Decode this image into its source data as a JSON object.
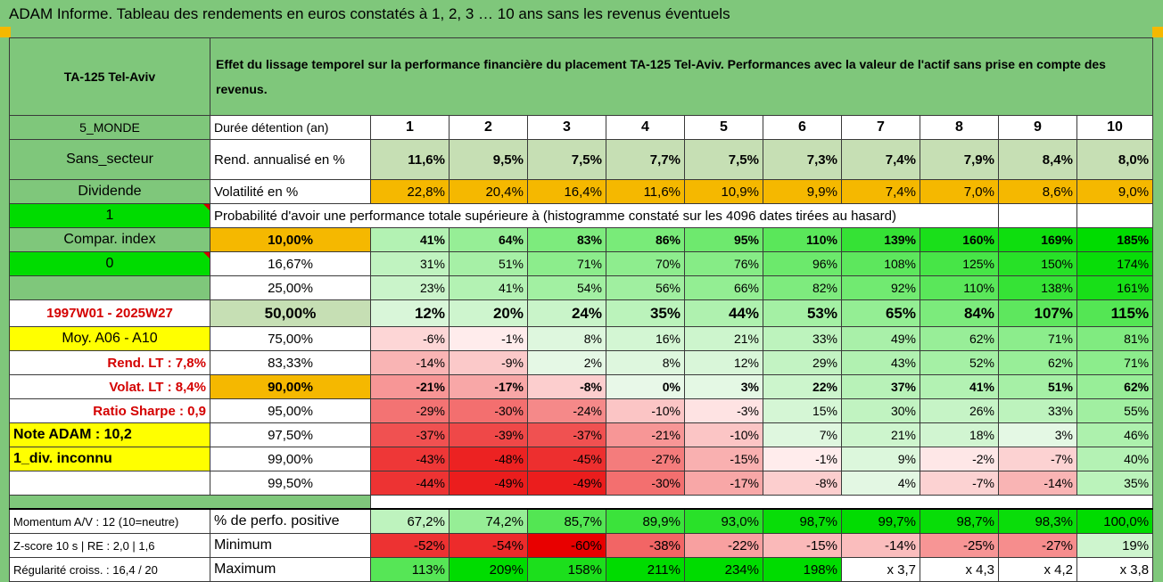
{
  "title": "ADAM Informe. Tableau des rendements en euros constatés à 1, 2, 3 … 10 ans sans les revenus éventuels",
  "header": {
    "asset": "TA-125 Tel-Aviv",
    "description": "Effet du lissage temporel sur la performance financière du placement TA-125 Tel-Aviv. Performances avec la valeur de l'actif sans prise en compte des revenus."
  },
  "left": {
    "zone": "5_MONDE",
    "sector": "Sans_secteur",
    "dividend": "Dividende",
    "flag_1": "1",
    "compar_index": "Compar. index",
    "flag_0": "0",
    "period": "1997W01 - 2025W27",
    "moy": "Moy. A06 - A10",
    "rend_lt": "Rend. LT :   7,8%",
    "volat_lt": "Volat. LT :   8,4%",
    "sharpe": "Ratio Sharpe :    0,9",
    "note": "Note ADAM : 10,2",
    "div": "1_div. inconnu"
  },
  "rows": {
    "duration_label": "Durée détention (an)",
    "years": [
      "1",
      "2",
      "3",
      "4",
      "5",
      "6",
      "7",
      "8",
      "9",
      "10"
    ],
    "return_label": "Rend. annualisé en %",
    "returns": [
      "11,6%",
      "9,5%",
      "7,5%",
      "7,7%",
      "7,5%",
      "7,3%",
      "7,4%",
      "7,9%",
      "8,4%",
      "8,0%"
    ],
    "vol_label": "Volatilité en %",
    "vols": [
      "22,8%",
      "20,4%",
      "16,4%",
      "11,6%",
      "10,9%",
      "9,9%",
      "7,4%",
      "7,0%",
      "8,6%",
      "9,0%"
    ],
    "prob_label": "Probabilité d'avoir une performance totale supérieure à (histogramme constaté sur les 4096 dates tirées au hasard)"
  },
  "percentiles": [
    {
      "p": "10,00%",
      "v": [
        "41%",
        "64%",
        "83%",
        "86%",
        "95%",
        "110%",
        "139%",
        "160%",
        "169%",
        "185%"
      ]
    },
    {
      "p": "16,67%",
      "v": [
        "31%",
        "51%",
        "71%",
        "70%",
        "76%",
        "96%",
        "108%",
        "125%",
        "150%",
        "174%"
      ]
    },
    {
      "p": "25,00%",
      "v": [
        "23%",
        "41%",
        "54%",
        "56%",
        "66%",
        "82%",
        "92%",
        "110%",
        "138%",
        "161%"
      ]
    },
    {
      "p": "50,00%",
      "v": [
        "12%",
        "20%",
        "24%",
        "35%",
        "44%",
        "53%",
        "65%",
        "84%",
        "107%",
        "115%"
      ]
    },
    {
      "p": "75,00%",
      "v": [
        "-6%",
        "-1%",
        "8%",
        "16%",
        "21%",
        "33%",
        "49%",
        "62%",
        "71%",
        "81%"
      ]
    },
    {
      "p": "83,33%",
      "v": [
        "-14%",
        "-9%",
        "2%",
        "8%",
        "12%",
        "29%",
        "43%",
        "52%",
        "62%",
        "71%"
      ]
    },
    {
      "p": "90,00%",
      "v": [
        "-21%",
        "-17%",
        "-8%",
        "0%",
        "3%",
        "22%",
        "37%",
        "41%",
        "51%",
        "62%"
      ]
    },
    {
      "p": "95,00%",
      "v": [
        "-29%",
        "-30%",
        "-24%",
        "-10%",
        "-3%",
        "15%",
        "30%",
        "26%",
        "33%",
        "55%"
      ]
    },
    {
      "p": "97,50%",
      "v": [
        "-37%",
        "-39%",
        "-37%",
        "-21%",
        "-10%",
        "7%",
        "21%",
        "18%",
        "3%",
        "46%"
      ]
    },
    {
      "p": "99,00%",
      "v": [
        "-43%",
        "-48%",
        "-45%",
        "-27%",
        "-15%",
        "-1%",
        "9%",
        "-2%",
        "-7%",
        "40%"
      ]
    },
    {
      "p": "99,50%",
      "v": [
        "-44%",
        "-49%",
        "-49%",
        "-30%",
        "-17%",
        "-8%",
        "4%",
        "-7%",
        "-14%",
        "35%"
      ]
    }
  ],
  "bottom": {
    "momentum": "Momentum A/V : 12 (10=neutre)",
    "zscore": "Z-score 10 s | RE : 2,0 | 1,6",
    "regularite": "Régularité croiss. : 16,4 / 20",
    "pos_label": "% de perfo. positive",
    "pos": [
      "67,2%",
      "74,2%",
      "85,7%",
      "89,9%",
      "93,0%",
      "98,7%",
      "99,7%",
      "98,7%",
      "98,3%",
      "100,0%"
    ],
    "min_label": "Minimum",
    "min": [
      "-52%",
      "-54%",
      "-60%",
      "-38%",
      "-22%",
      "-15%",
      "-14%",
      "-25%",
      "-27%",
      "19%"
    ],
    "max_label": "Maximum",
    "max": [
      "113%",
      "209%",
      "158%",
      "211%",
      "234%",
      "198%",
      "x 3,7",
      "x 4,3",
      "x 4,2",
      "x 3,8"
    ]
  },
  "colors": {
    "frame_green": "#7fc77b",
    "light_green": "#c6dfb4",
    "orange": "#f5b800",
    "yellow": "#ffff00",
    "bright_green": "#00dc00",
    "red_text": "#d40000"
  }
}
